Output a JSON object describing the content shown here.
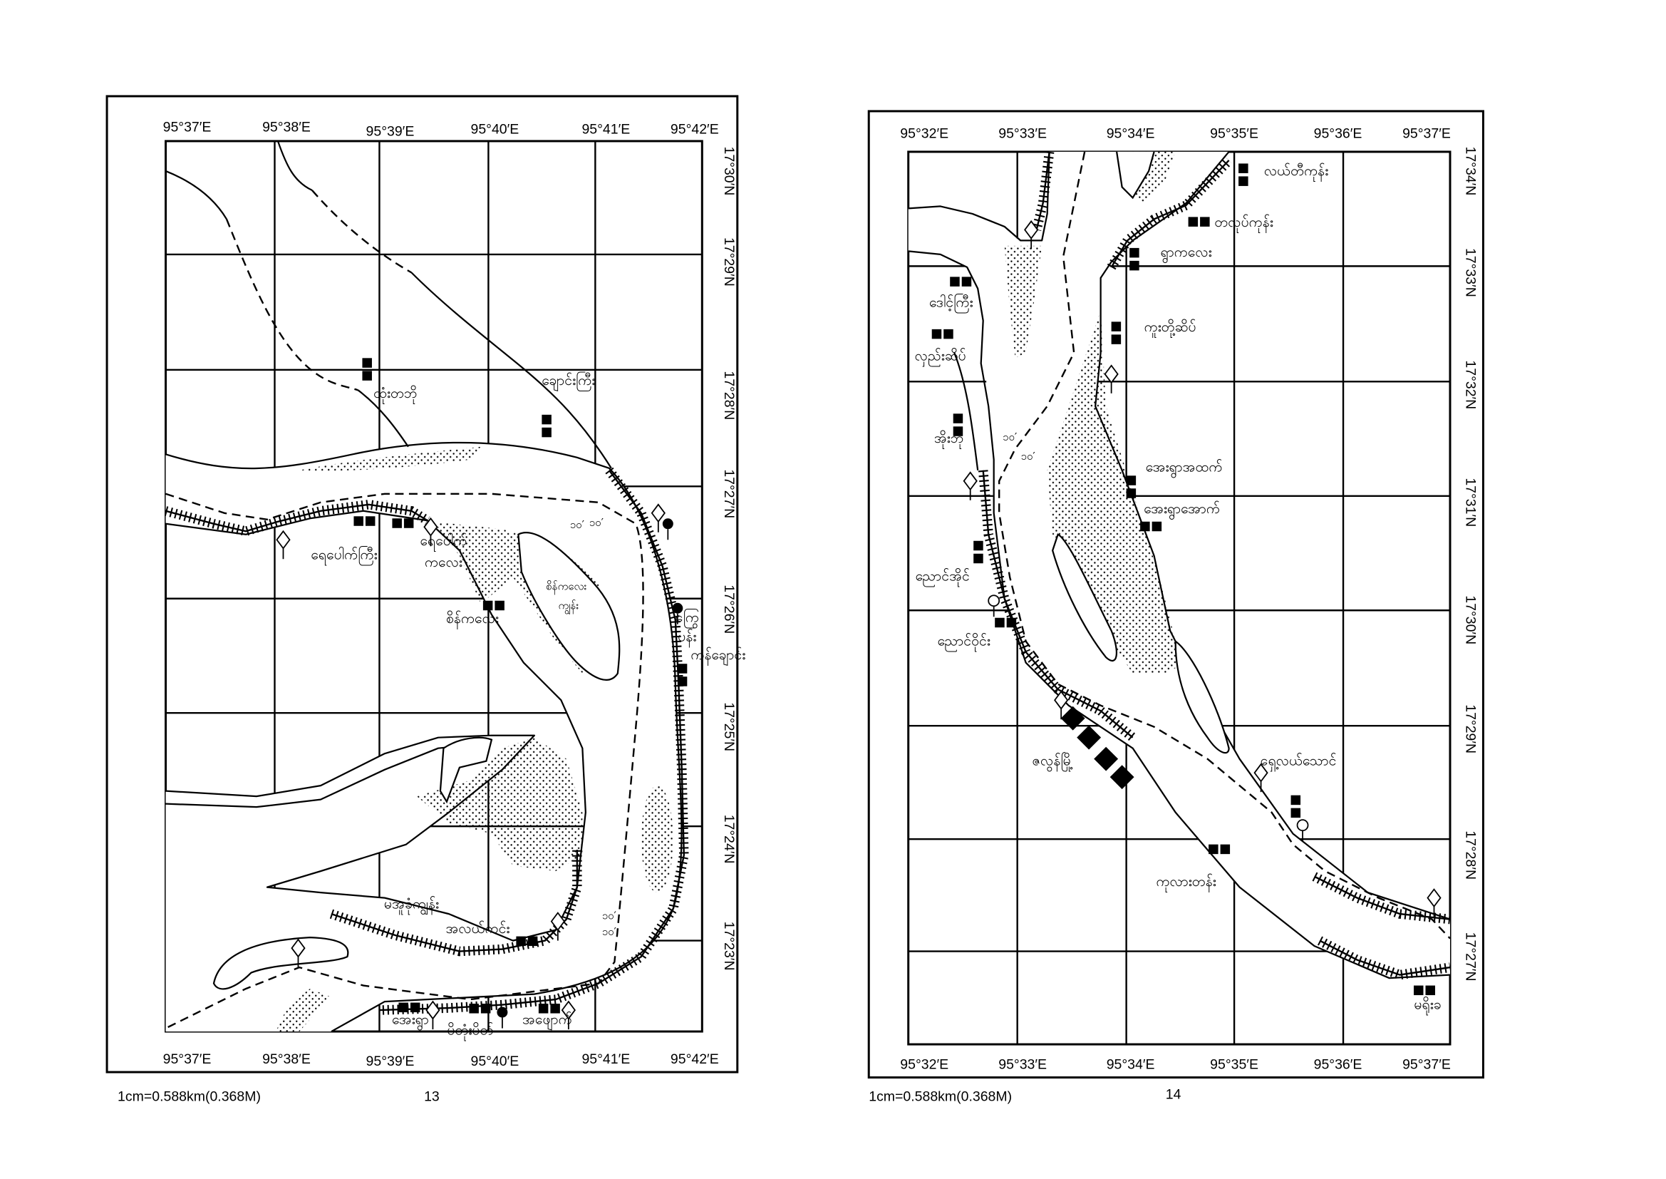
{
  "pages": [
    {
      "page_number": "13",
      "scale": "1cm=0.588km(0.368M)",
      "lon_labels": [
        "95°37′E",
        "95°38′E",
        "95°39′E",
        "95°40′E",
        "95°41′E",
        "95°42′E"
      ],
      "lat_labels": [
        "17°30′N",
        "17°29′N",
        "17°28′N",
        "17°27′N",
        "17°26′N",
        "17°25′N",
        "17°24′N",
        "17°23′N"
      ],
      "places": [
        "ထုံးတဘို",
        "ချောင်းကြီး",
        "ရေပေါက်ကြီး",
        "ရေပေါက်",
        "ကလေး",
        "စိန်ကလေး",
        "စိန်ကလေး",
        "ကျွန်း",
        "ကြွေ",
        "ပန်း",
        "ကန်ချောင်း",
        "မအူခုံကျွန်း",
        "အလယ်ကင်း",
        "အေးရွာ",
        "ပိတုံးပိတ်",
        "အဖျောက်"
      ],
      "depth_marks": [
        "၁၀′",
        "၁၀′",
        "၁၀′",
        "၁၀′"
      ]
    },
    {
      "page_number": "14",
      "scale": "1cm=0.588km(0.368M)",
      "lon_labels": [
        "95°32′E",
        "95°33′E",
        "95°34′E",
        "95°35′E",
        "95°36′E",
        "95°37′E"
      ],
      "lat_labels": [
        "17°34′N",
        "17°33′N",
        "17°32′N",
        "17°31′N",
        "17°30′N",
        "17°29′N",
        "17°28′N",
        "17°27′N"
      ],
      "places": [
        "လယ်တီကုန်း",
        "တလုပ်ကုန်း",
        "ရွာကလေး",
        "ဒေါင့်ကြီး",
        "လှည်းဆိပ်",
        "ကူးတို့ဆိပ်",
        "အိုးဘို",
        "အေးရွာအထက်",
        "အေးရွာအောက်",
        "ညောင်အိုင်",
        "ညောင်ဝိုင်း",
        "ဇလွန်မြို့",
        "ရှေ့လယ်သောင်",
        "ကုလားတန်း",
        "မရိုးခ"
      ],
      "depth_marks": [
        "၁၀′",
        "၁၀′"
      ]
    }
  ],
  "colors": {
    "ink": "#000000",
    "paper": "#ffffff"
  },
  "legend_symbols": [
    "village-square-icon",
    "diamond-marker-icon",
    "filled-circle-marker-icon",
    "open-circle-marker-icon",
    "embankment-hatch",
    "navigation-channel-dashed",
    "sandbank-stipple"
  ]
}
